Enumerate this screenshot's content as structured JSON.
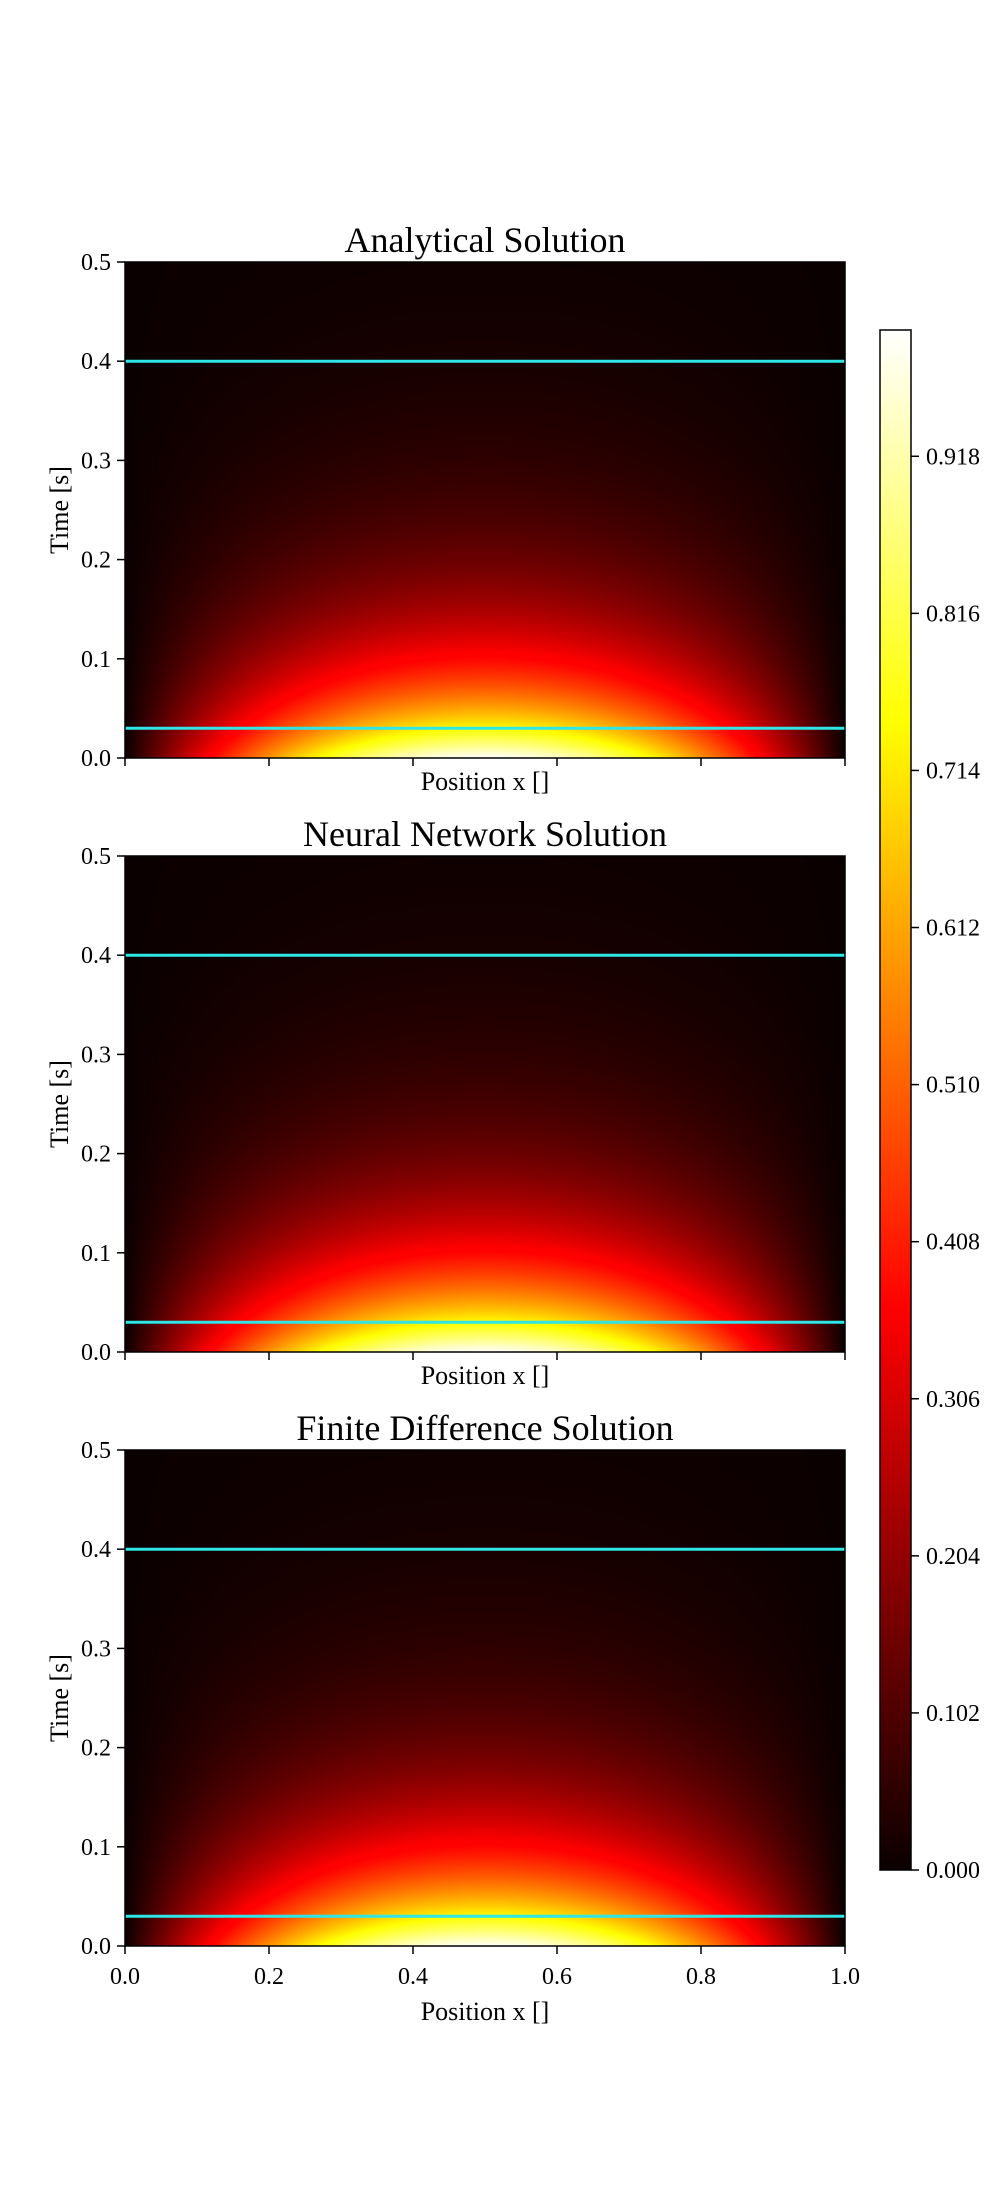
{
  "chart_data": {
    "type": "heatmap",
    "colormap": "hot",
    "x_range": [
      0.0,
      1.0
    ],
    "t_range": [
      0.0,
      0.5
    ],
    "field": "exp(-pi^2 t) sin(pi x)",
    "line_color": "#2ee6e6",
    "panels": [
      {
        "title": "Analytical Solution",
        "xlabel": "Position x []",
        "ylabel": "Time [s]",
        "xlim": [
          0.0,
          1.0
        ],
        "ylim": [
          0.0,
          0.5
        ],
        "yticks": [
          "0.0",
          "0.1",
          "0.2",
          "0.3",
          "0.4",
          "0.5"
        ],
        "xticks": [],
        "hlines": [
          0.03,
          0.4
        ]
      },
      {
        "title": "Neural Network Solution",
        "xlabel": "Position x []",
        "ylabel": "Time [s]",
        "xlim": [
          0.0,
          1.0
        ],
        "ylim": [
          0.0,
          0.5
        ],
        "yticks": [
          "0.0",
          "0.1",
          "0.2",
          "0.3",
          "0.4",
          "0.5"
        ],
        "xticks": [],
        "hlines": [
          0.03,
          0.4
        ]
      },
      {
        "title": "Finite Difference Solution",
        "xlabel": "Position x []",
        "ylabel": "Time [s]",
        "xlim": [
          0.0,
          1.0
        ],
        "ylim": [
          0.0,
          0.5
        ],
        "yticks": [
          "0.0",
          "0.1",
          "0.2",
          "0.3",
          "0.4",
          "0.5"
        ],
        "xticks": [
          "0.0",
          "0.2",
          "0.4",
          "0.6",
          "0.8",
          "1.0"
        ],
        "hlines": [
          0.03,
          0.4
        ]
      }
    ],
    "colorbar": {
      "range": [
        0.0,
        1.0
      ],
      "ticks": [
        "0.000",
        "0.102",
        "0.204",
        "0.306",
        "0.408",
        "0.510",
        "0.612",
        "0.714",
        "0.816",
        "0.918"
      ]
    }
  }
}
